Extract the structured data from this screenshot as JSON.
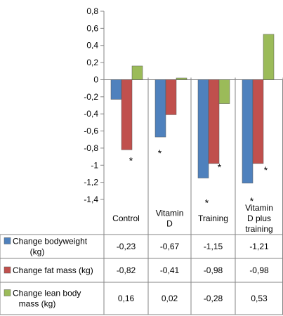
{
  "chart_data": {
    "type": "bar",
    "categories": [
      "Control",
      "Vitamin D",
      "Training",
      "Vitamin D plus training"
    ],
    "category_label_lines": [
      [
        "Control"
      ],
      [
        "Vitamin",
        "D"
      ],
      [
        "Training"
      ],
      [
        "Vitamin",
        "D plus",
        "training"
      ]
    ],
    "series": [
      {
        "name": "Change bodyweight (kg)",
        "name_lines": [
          "Change bodyweight",
          "(kg)"
        ],
        "color": "#4f81bd",
        "values": [
          -0.23,
          -0.67,
          -1.15,
          -1.21
        ],
        "labels": [
          "-0,23",
          "-0,67",
          "-1,15",
          "-1,21"
        ]
      },
      {
        "name": "Change fat mass (kg)",
        "name_lines": [
          "Change fat mass (kg)"
        ],
        "color": "#c0504d",
        "values": [
          -0.82,
          -0.41,
          -0.98,
          -0.98
        ],
        "labels": [
          "-0,82",
          "-0,41",
          "-0,98",
          "-0,98"
        ]
      },
      {
        "name": "Change lean body mass (kg)",
        "name_lines": [
          "Change lean body",
          "mass (kg)"
        ],
        "color": "#9bbb59",
        "values": [
          0.16,
          0.02,
          -0.28,
          0.53
        ],
        "labels": [
          "0,16",
          "0,02",
          "-0,28",
          "0,53"
        ]
      }
    ],
    "ylim": [
      -1.4,
      0.8
    ],
    "yticks": [
      0.8,
      0.6,
      0.4,
      0.2,
      0,
      -0.2,
      -0.4,
      -0.6,
      -0.8,
      -1,
      -1.2,
      -1.4
    ],
    "ytick_labels": [
      "0,8",
      "0,6",
      "0,4",
      "0,2",
      "0",
      "-0,2",
      "-0,4",
      "-0,6",
      "-0,8",
      "-1",
      "-1,2",
      "-1,4"
    ],
    "grid": false,
    "legend": "data table",
    "annotations": [
      {
        "text": "*",
        "category": 0,
        "series": 1
      },
      {
        "text": "*",
        "category": 1,
        "series": 0
      },
      {
        "text": "*",
        "category": 2,
        "series": 0
      },
      {
        "text": "*",
        "category": 2,
        "series": 1
      },
      {
        "text": "*",
        "category": 3,
        "series": 0
      },
      {
        "text": "*",
        "category": 3,
        "series": 1
      }
    ]
  }
}
